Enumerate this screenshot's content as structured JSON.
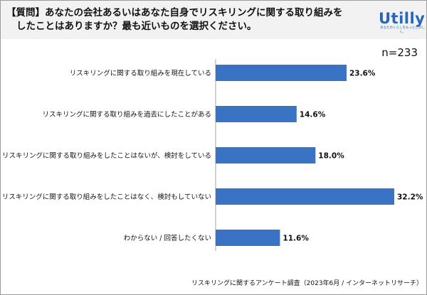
{
  "question": {
    "line1": "【質問】あなたの会社あるいはあなた自身でリスキリングに関する取り組みを",
    "line2": "したことはありますか？最も近いものを選択ください。"
  },
  "logo": {
    "name": "Utilly",
    "tagline": "あなたのくらしをもっとたのしく。"
  },
  "sample_size": "n=233",
  "source": "リスキリングに関するアンケート調査（2023年6月 / インターネットリサーチ）",
  "colors": {
    "bar": "#3a72c4",
    "header_bg": "#f2f2f2",
    "axis": "#a6a6a6",
    "logo": "#2a66b8"
  },
  "chart_data": {
    "type": "bar",
    "orientation": "horizontal",
    "categories": [
      "リスキリングに関する取り組みを現在している",
      "リスキリングに関する取り組みを過去にしたことがある",
      "リスキリングに関する取り組みをしたことはないが、検討をしている",
      "リスキリングに関する取り組みをしたことはなく、検討もしていない",
      "わからない / 回答したくない"
    ],
    "values": [
      23.6,
      14.6,
      18.0,
      32.2,
      11.6
    ],
    "value_labels": [
      "23.6%",
      "14.6%",
      "18.0%",
      "32.2%",
      "11.6%"
    ],
    "unit": "%",
    "xlim": [
      0,
      32.2
    ],
    "grid": false,
    "legend": "none"
  }
}
